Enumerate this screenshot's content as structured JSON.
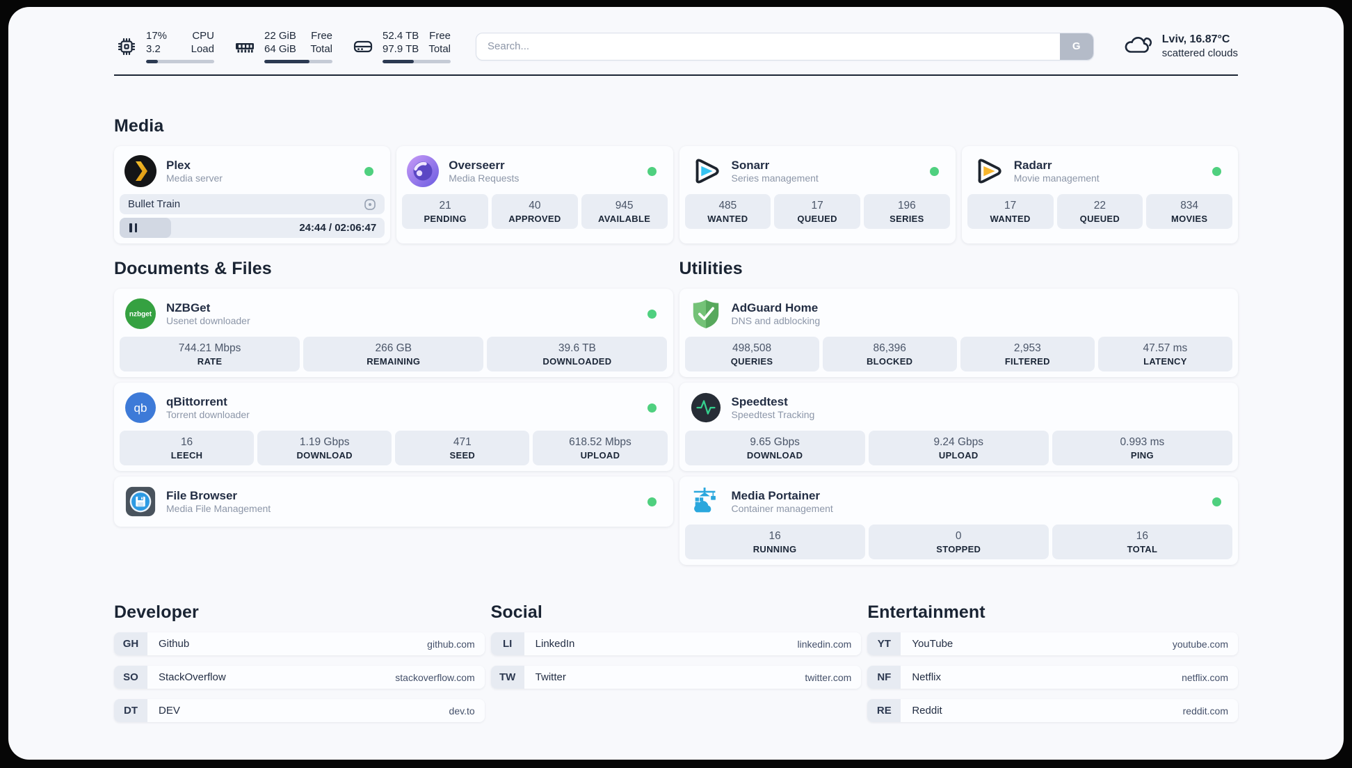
{
  "page": {
    "background": "#f8f9fc",
    "status_green": "#4fd07f"
  },
  "header": {
    "cpu": {
      "values": [
        "17%",
        "3.2"
      ],
      "labels": [
        "CPU",
        "Load"
      ],
      "progress_pct": 17
    },
    "memory": {
      "values": [
        "22 GiB",
        "64 GiB"
      ],
      "labels": [
        "Free",
        "Total"
      ],
      "progress_pct": 66
    },
    "storage": {
      "values": [
        "52.4 TB",
        "97.9 TB"
      ],
      "labels": [
        "Free",
        "Total"
      ],
      "progress_pct": 46
    },
    "search": {
      "placeholder": "Search...",
      "button_label": "G"
    },
    "weather": {
      "location": "Lviv, 16.87°C",
      "condition": "scattered clouds"
    }
  },
  "sections": {
    "media": {
      "title": "Media",
      "cards": [
        {
          "name": "Plex",
          "description": "Media server",
          "status": "online",
          "now_playing": {
            "title": "Bullet Train",
            "time": "24:44 / 02:06:47",
            "progress_pct": 19.5
          }
        },
        {
          "name": "Overseerr",
          "description": "Media Requests",
          "status": "online",
          "stats": [
            {
              "value": "21",
              "label": "PENDING"
            },
            {
              "value": "40",
              "label": "APPROVED"
            },
            {
              "value": "945",
              "label": "AVAILABLE"
            }
          ]
        },
        {
          "name": "Sonarr",
          "description": "Series management",
          "status": "online",
          "stats": [
            {
              "value": "485",
              "label": "WANTED"
            },
            {
              "value": "17",
              "label": "QUEUED"
            },
            {
              "value": "196",
              "label": "SERIES"
            }
          ]
        },
        {
          "name": "Radarr",
          "description": "Movie management",
          "status": "online",
          "stats": [
            {
              "value": "17",
              "label": "WANTED"
            },
            {
              "value": "22",
              "label": "QUEUED"
            },
            {
              "value": "834",
              "label": "MOVIES"
            }
          ]
        }
      ]
    },
    "documents": {
      "title": "Documents & Files",
      "cards": [
        {
          "name": "NZBGet",
          "description": "Usenet downloader",
          "status": "online",
          "stats": [
            {
              "value": "744.21 Mbps",
              "label": "RATE"
            },
            {
              "value": "266 GB",
              "label": "REMAINING"
            },
            {
              "value": "39.6 TB",
              "label": "DOWNLOADED"
            }
          ]
        },
        {
          "name": "qBittorrent",
          "description": "Torrent downloader",
          "status": "online",
          "stats": [
            {
              "value": "16",
              "label": "LEECH"
            },
            {
              "value": "1.19 Gbps",
              "label": "DOWNLOAD"
            },
            {
              "value": "471",
              "label": "SEED"
            },
            {
              "value": "618.52 Mbps",
              "label": "UPLOAD"
            }
          ]
        },
        {
          "name": "File Browser",
          "description": "Media File Management",
          "status": "online"
        }
      ]
    },
    "utilities": {
      "title": "Utilities",
      "cards": [
        {
          "name": "AdGuard Home",
          "description": "DNS and adblocking",
          "stats": [
            {
              "value": "498,508",
              "label": "QUERIES"
            },
            {
              "value": "86,396",
              "label": "BLOCKED"
            },
            {
              "value": "2,953",
              "label": "FILTERED"
            },
            {
              "value": "47.57 ms",
              "label": "LATENCY"
            }
          ]
        },
        {
          "name": "Speedtest",
          "description": "Speedtest Tracking",
          "stats": [
            {
              "value": "9.65 Gbps",
              "label": "DOWNLOAD"
            },
            {
              "value": "9.24 Gbps",
              "label": "UPLOAD"
            },
            {
              "value": "0.993 ms",
              "label": "PING"
            }
          ]
        },
        {
          "name": "Media Portainer",
          "description": "Container management",
          "status": "online",
          "stats": [
            {
              "value": "16",
              "label": "RUNNING"
            },
            {
              "value": "0",
              "label": "STOPPED"
            },
            {
              "value": "16",
              "label": "TOTAL"
            }
          ]
        }
      ]
    },
    "links": [
      {
        "title": "Developer",
        "items": [
          {
            "abbr": "GH",
            "name": "Github",
            "url": "github.com"
          },
          {
            "abbr": "SO",
            "name": "StackOverflow",
            "url": "stackoverflow.com"
          },
          {
            "abbr": "DT",
            "name": "DEV",
            "url": "dev.to"
          }
        ]
      },
      {
        "title": "Social",
        "items": [
          {
            "abbr": "LI",
            "name": "LinkedIn",
            "url": "linkedin.com"
          },
          {
            "abbr": "TW",
            "name": "Twitter",
            "url": "twitter.com"
          }
        ]
      },
      {
        "title": "Entertainment",
        "items": [
          {
            "abbr": "YT",
            "name": "YouTube",
            "url": "youtube.com"
          },
          {
            "abbr": "NF",
            "name": "Netflix",
            "url": "netflix.com"
          },
          {
            "abbr": "RE",
            "name": "Reddit",
            "url": "reddit.com"
          }
        ]
      }
    ]
  }
}
